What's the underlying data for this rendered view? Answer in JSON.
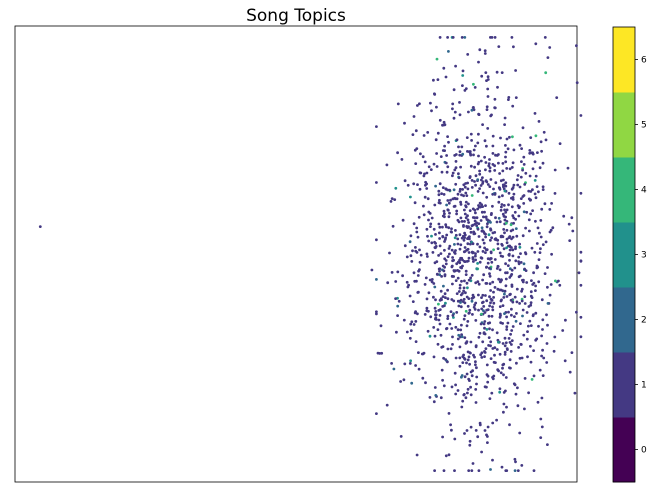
{
  "chart_data": {
    "type": "scatter",
    "title": "Song Topics",
    "xlabel": "",
    "ylabel": "",
    "axis_ticks_visible": false,
    "grid": false,
    "legend": "none",
    "colorbar": {
      "position": "right",
      "type": "discrete",
      "range": [
        -0.5,
        6.5
      ],
      "ticks": [
        0,
        1,
        2,
        3,
        4,
        5,
        6
      ],
      "tick_labels": [
        "0",
        "1",
        "2",
        "3",
        "4",
        "5",
        "6"
      ],
      "colors": [
        "#440154",
        "#443983",
        "#31688e",
        "#21918c",
        "#35b779",
        "#90d743",
        "#fde725"
      ]
    },
    "xlim": [
      -100,
      100
    ],
    "ylim": [
      -100,
      100
    ],
    "notes_visible": "dense cluster of small points colored mostly topic 1, with sparse topics 2-4; two isolated outliers at left",
    "outliers": [
      {
        "x": -91,
        "y": 12,
        "topic": 1
      },
      {
        "x": 27,
        "y": -7,
        "topic": 1
      }
    ],
    "cluster": {
      "center_x": 65,
      "center_y": 0,
      "spread_x": 14,
      "spread_y": 38,
      "count": 1400,
      "topic_share": {
        "1": 0.93,
        "2": 0.03,
        "3": 0.025,
        "4": 0.015
      }
    }
  }
}
